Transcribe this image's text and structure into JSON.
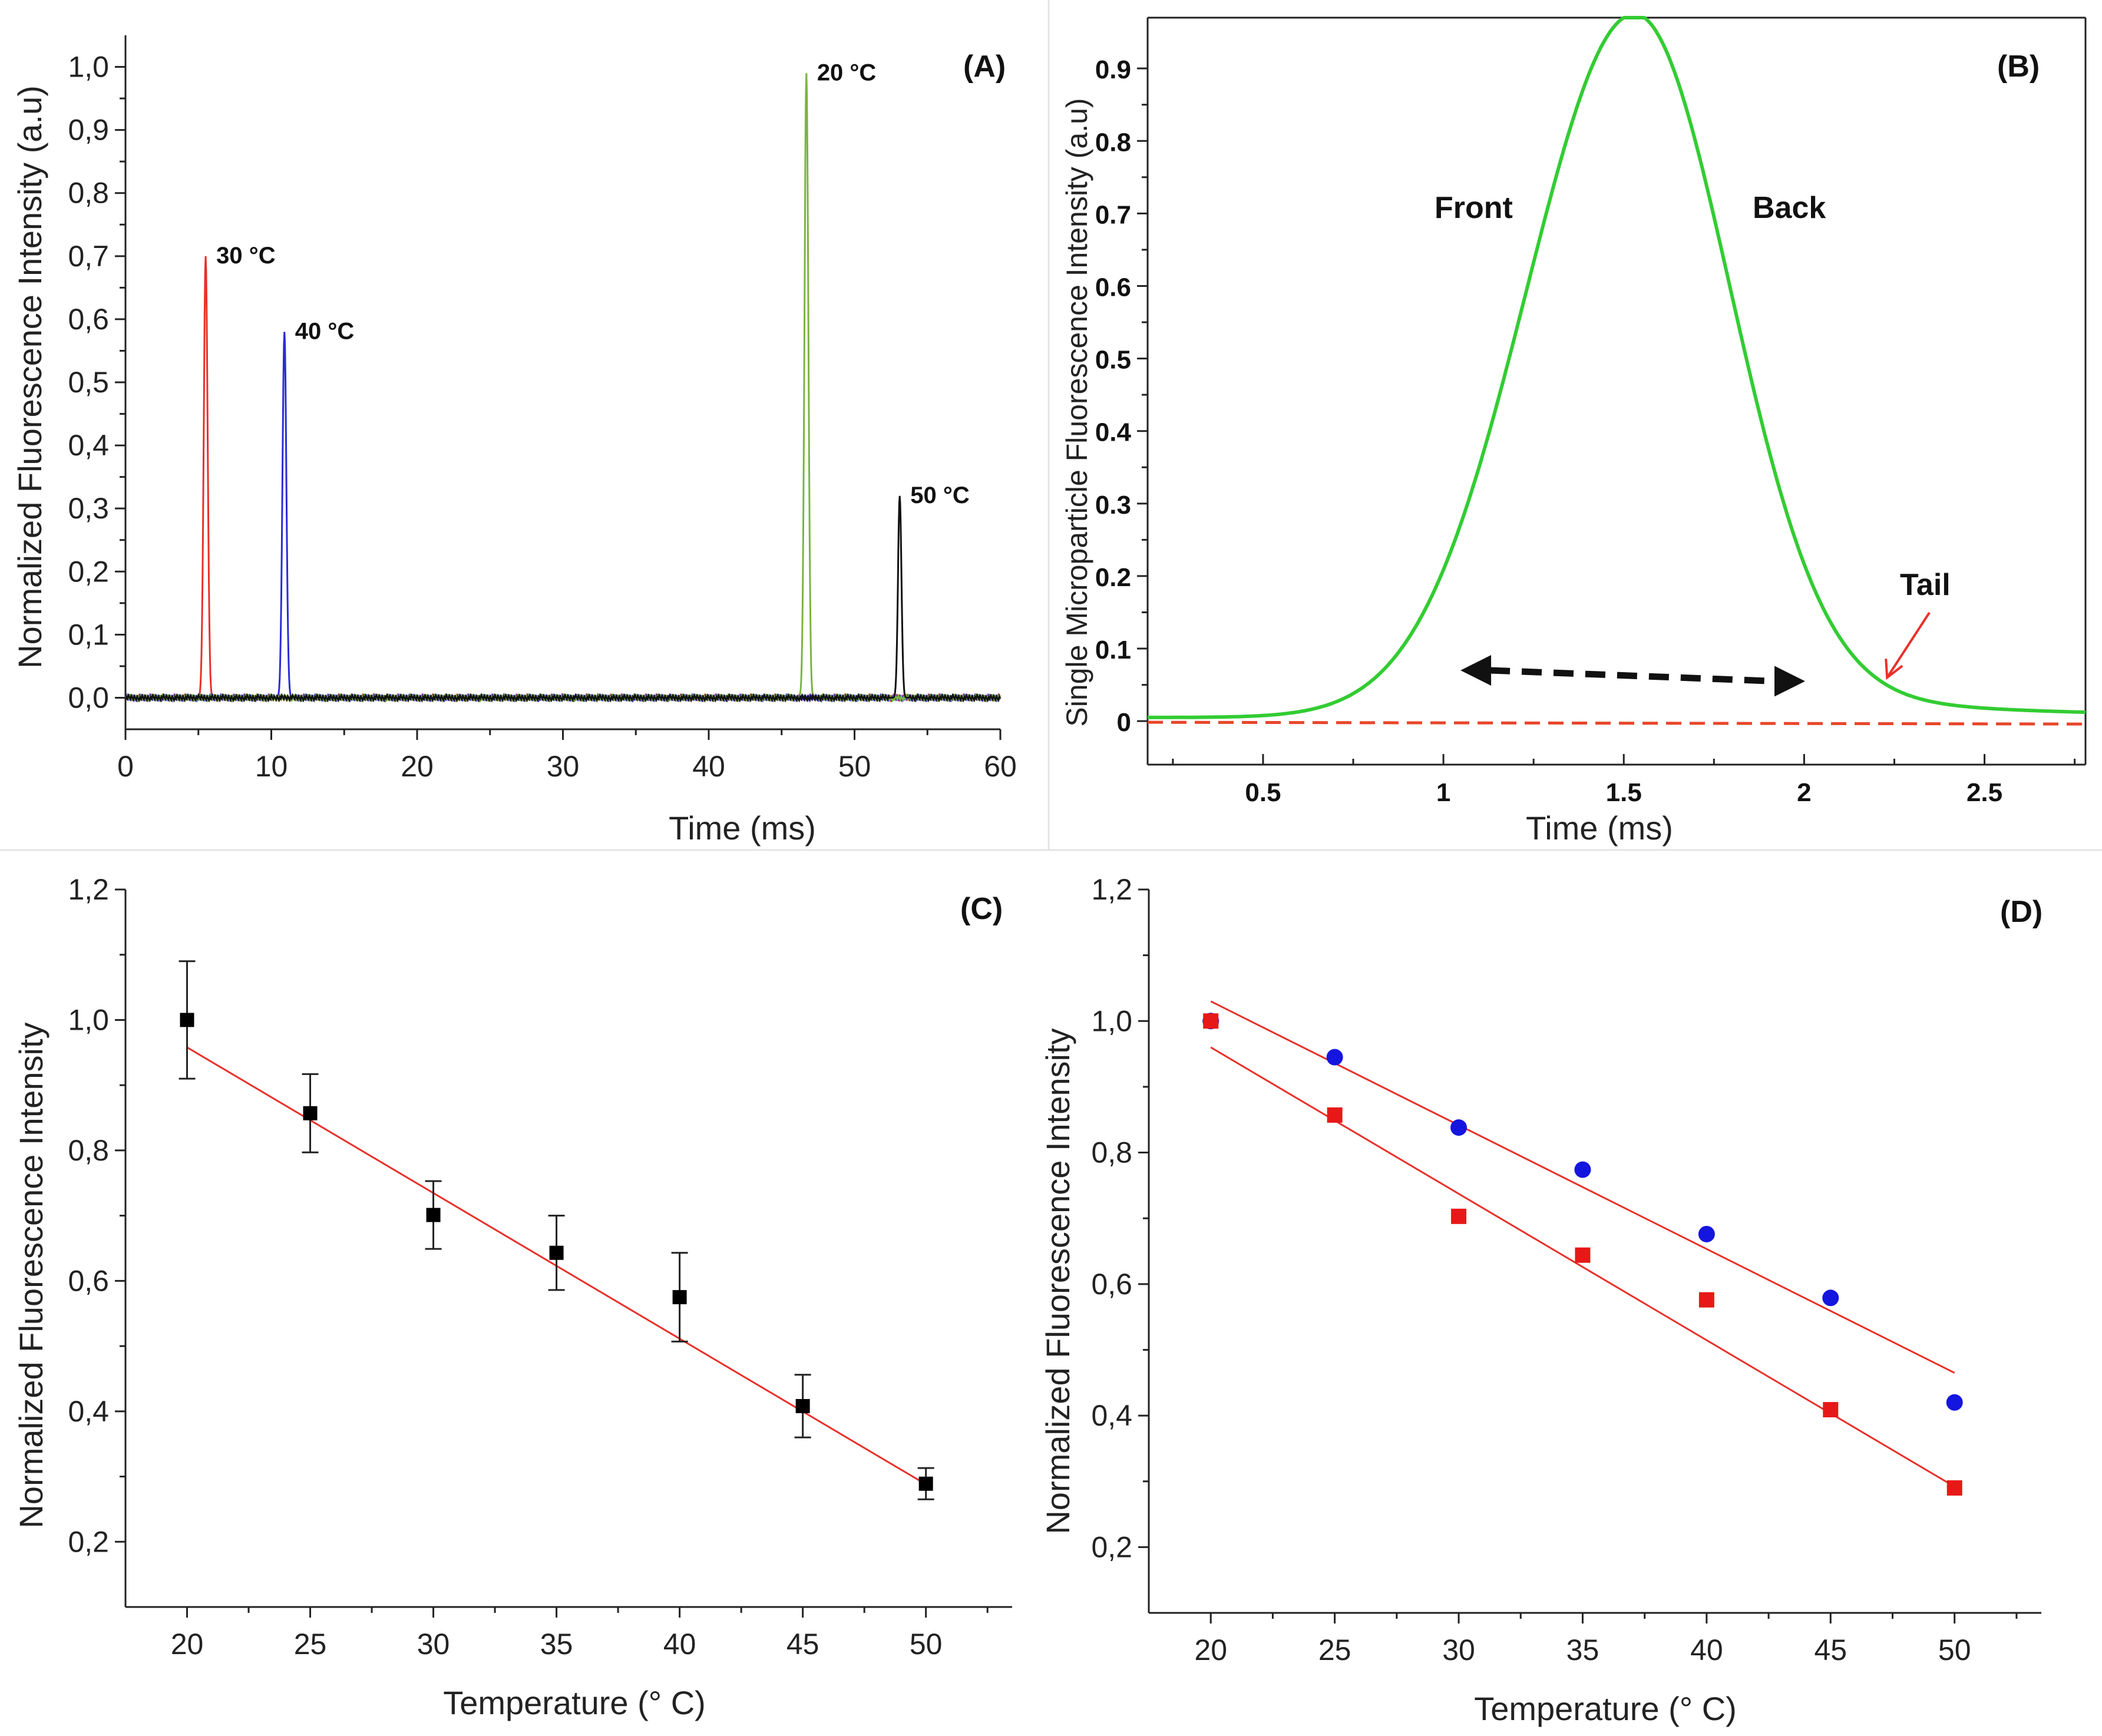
{
  "figure": {
    "panels": [
      {
        "id": "A",
        "label": "(A)"
      },
      {
        "id": "B",
        "label": "(B)"
      },
      {
        "id": "C",
        "label": "(C)"
      },
      {
        "id": "D",
        "label": "(D)"
      }
    ]
  },
  "chart_data": [
    {
      "panel": "(A)",
      "type": "line",
      "xlabel": "Time (ms)",
      "ylabel": "Normalized Fluorescence Intensity (a.u)",
      "xlim": [
        0,
        60
      ],
      "ylim": [
        -0.05,
        1.05
      ],
      "xticks": [
        0,
        10,
        20,
        30,
        40,
        50,
        60
      ],
      "xtick_labels": [
        "0",
        "10",
        "20",
        "30",
        "40",
        "50",
        "60"
      ],
      "yticks": [
        0.0,
        0.1,
        0.2,
        0.3,
        0.4,
        0.5,
        0.6,
        0.7,
        0.8,
        0.9,
        1.0
      ],
      "ytick_labels": [
        "0,0",
        "0,1",
        "0,2",
        "0,3",
        "0,4",
        "0,5",
        "0,6",
        "0,7",
        "0,8",
        "0,9",
        "1,0"
      ],
      "series": [
        {
          "label": "30 °C",
          "color": "#e8312a",
          "peak_time": 5.5,
          "peak_value": 0.7,
          "width": 0.45
        },
        {
          "label": "40 °C",
          "color": "#2b2bd6",
          "peak_time": 10.9,
          "peak_value": 0.58,
          "width": 0.45
        },
        {
          "label": "20 °C",
          "color": "#7cb342",
          "peak_time": 46.7,
          "peak_value": 0.99,
          "width": 0.45
        },
        {
          "label": "50 °C",
          "color": "#111111",
          "peak_time": 53.1,
          "peak_value": 0.32,
          "width": 0.4
        }
      ],
      "baseline": 0.0
    },
    {
      "panel": "(B)",
      "type": "line",
      "xlabel": "Time (ms)",
      "ylabel": "Single Microparticle Fluorescence Intensity (a.u)",
      "xlim": [
        0.18,
        2.78
      ],
      "ylim": [
        -0.06,
        0.97
      ],
      "xticks": [
        0.5,
        1,
        1.5,
        2,
        2.5
      ],
      "xtick_labels": [
        "0.5",
        "1",
        "1.5",
        "2",
        "2.5"
      ],
      "yticks": [
        0,
        0.1,
        0.2,
        0.3,
        0.4,
        0.5,
        0.6,
        0.7,
        0.8,
        0.9
      ],
      "ytick_labels": [
        "0",
        "0.1",
        "0.2",
        "0.3",
        "0.4",
        "0.5",
        "0.6",
        "0.7",
        "0.8",
        "0.9"
      ],
      "peak": {
        "color": "#33cc33",
        "center": 1.53,
        "height": 0.97,
        "baseline": 0.005
      },
      "reference_line": {
        "color": "#e8462a",
        "value": 0.0
      },
      "annotations": [
        "Front",
        "Back",
        "Tail"
      ]
    },
    {
      "panel": "(C)",
      "type": "scatter",
      "xlabel": "Temperature (° C)",
      "ylabel": "Normalized Fluorescence Intensity",
      "xlim": [
        17.5,
        53.5
      ],
      "ylim": [
        0.1,
        1.2
      ],
      "xticks": [
        20,
        25,
        30,
        35,
        40,
        45,
        50
      ],
      "xtick_labels": [
        "20",
        "25",
        "30",
        "35",
        "40",
        "45",
        "50"
      ],
      "yticks": [
        0.2,
        0.4,
        0.6,
        0.8,
        1.0,
        1.2
      ],
      "ytick_labels": [
        "0,2",
        "0,4",
        "0,6",
        "0,8",
        "1,0",
        "1,2"
      ],
      "x": [
        20,
        25,
        30,
        35,
        40,
        45,
        50
      ],
      "y": [
        1.0,
        0.857,
        0.701,
        0.643,
        0.575,
        0.408,
        0.289
      ],
      "error": [
        0.09,
        0.06,
        0.052,
        0.057,
        0.068,
        0.048,
        0.024
      ],
      "marker_color": "#000000",
      "fit": {
        "color": "#e8312a",
        "x": [
          20,
          50
        ],
        "y": [
          0.958,
          0.288
        ]
      }
    },
    {
      "panel": "(D)",
      "type": "scatter",
      "xlabel": "Temperature (° C)",
      "ylabel": "Normalized Fluorescence Intensity",
      "xlim": [
        17.5,
        53.5
      ],
      "ylim": [
        0.1,
        1.2
      ],
      "xticks": [
        20,
        25,
        30,
        35,
        40,
        45,
        50
      ],
      "xtick_labels": [
        "20",
        "25",
        "30",
        "35",
        "40",
        "45",
        "50"
      ],
      "yticks": [
        0.2,
        0.4,
        0.6,
        0.8,
        1.0,
        1.2
      ],
      "ytick_labels": [
        "0,2",
        "0,4",
        "0,6",
        "0,8",
        "1,0",
        "1,2"
      ],
      "series": [
        {
          "marker": "circle",
          "color": "#1515e0",
          "x": [
            20,
            25,
            30,
            35,
            40,
            45,
            50
          ],
          "y": [
            1.0,
            0.945,
            0.838,
            0.774,
            0.676,
            0.579,
            0.42
          ],
          "fit": {
            "x": [
              20,
              50
            ],
            "y": [
              1.03,
              0.465
            ]
          }
        },
        {
          "marker": "square",
          "color": "#e81818",
          "x": [
            20,
            25,
            30,
            35,
            40,
            45,
            50
          ],
          "y": [
            1.0,
            0.857,
            0.703,
            0.644,
            0.576,
            0.409,
            0.29
          ],
          "fit": {
            "x": [
              20,
              50
            ],
            "y": [
              0.96,
              0.292
            ]
          }
        }
      ],
      "fit_color": "#e8312a"
    }
  ]
}
